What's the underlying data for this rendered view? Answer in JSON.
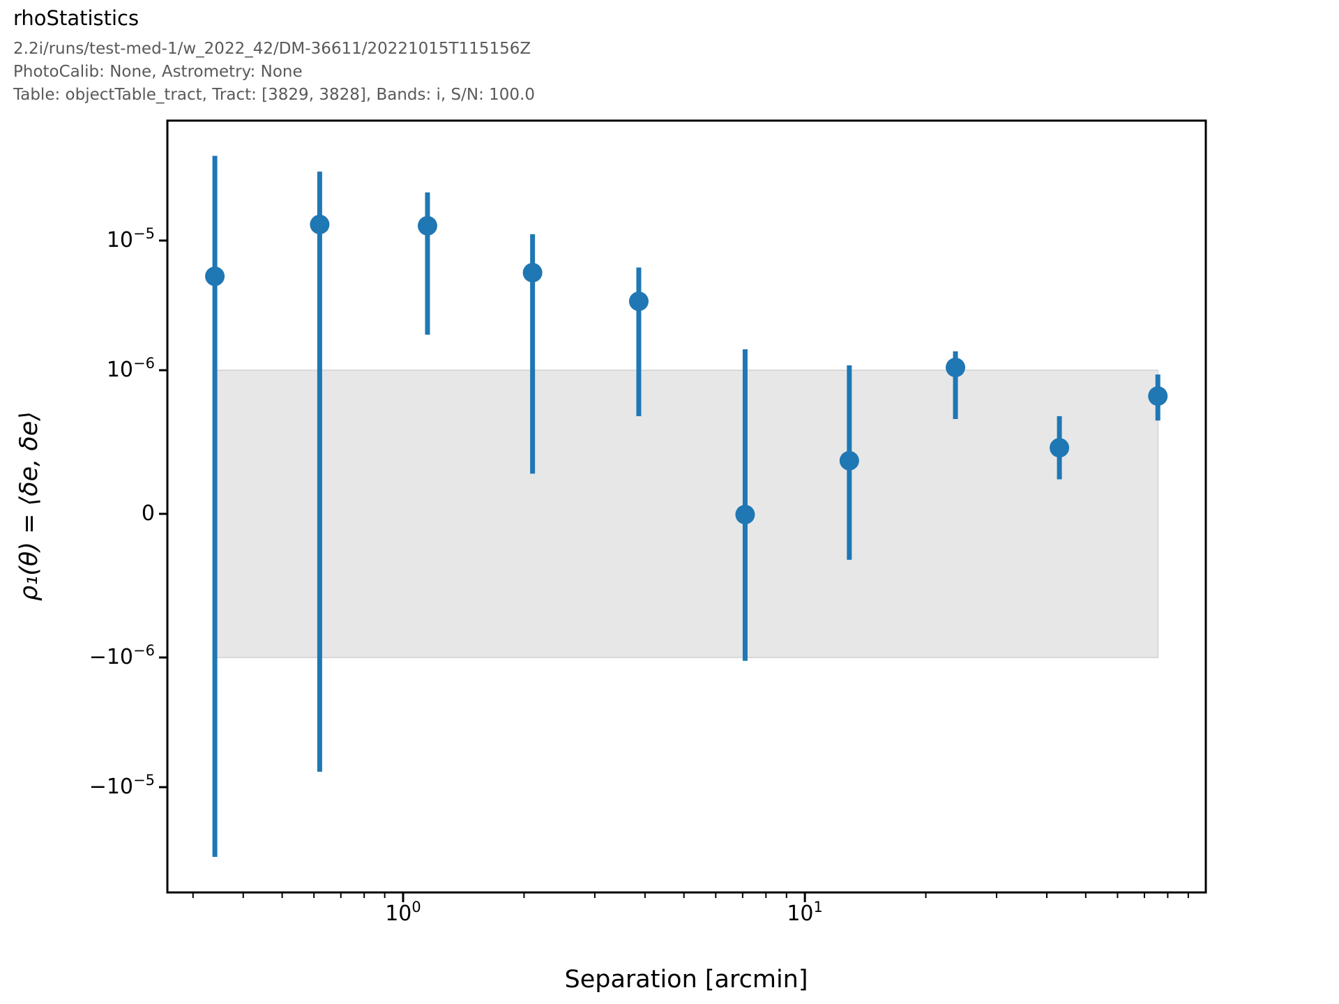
{
  "header": {
    "title": "rhoStatistics",
    "subtitle_lines": [
      "2.2i/runs/test-med-1/w_2022_42/DM-36611/20221015T115156Z",
      "PhotoCalib: None, Astrometry: None",
      "Table: objectTable_tract, Tract: [3829, 3828], Bands: i, S/N: 100.0"
    ]
  },
  "chart_data": {
    "type": "scatter",
    "title": "rhoStatistics",
    "xlabel": "Separation [arcmin]",
    "ylabel": "ρ₁(θ) = ⟨δe, δe⟩",
    "x_scale": "log",
    "y_scale": "symlog",
    "y_linthresh": 1e-06,
    "xlim": [
      0.259,
      99.5
    ],
    "ylim": [
      -6.5e-05,
      8.4e-05
    ],
    "grid": false,
    "legend": "none",
    "x": [
      0.34,
      0.62,
      1.15,
      2.1,
      3.86,
      7.1,
      12.9,
      23.7,
      43.0,
      75.6
    ],
    "y": [
      5.3e-06,
      1.33e-05,
      1.3e-05,
      5.65e-06,
      3.4e-06,
      -5e-09,
      3.7e-07,
      1.05e-06,
      4.6e-07,
      8.2e-07
    ],
    "err_hi": [
      4.5e-05,
      3.4e-05,
      2.35e-05,
      1.12e-05,
      6.2e-06,
      1.45e-06,
      1.09e-06,
      1.4e-06,
      6.8e-07,
      9.7e-07
    ],
    "err_lo": [
      -3.45e-05,
      -7.6e-06,
      1.88e-06,
      2.8e-07,
      6.8e-07,
      -1.06e-06,
      -3.2e-07,
      6.6e-07,
      2.4e-07,
      6.5e-07
    ],
    "band": {
      "y_min": -1e-06,
      "y_max": 1e-06,
      "x_min": 0.34,
      "x_max": 75.6
    },
    "x_ticks": [
      {
        "value": 1,
        "base": "10",
        "exp": "0"
      },
      {
        "value": 10,
        "base": "10",
        "exp": "1"
      }
    ],
    "y_ticks": [
      {
        "value": 1e-05,
        "sign": "",
        "base": "10",
        "exp": "−5"
      },
      {
        "value": 1e-06,
        "sign": "",
        "base": "10",
        "exp": "−6"
      },
      {
        "value": 0,
        "sign": "",
        "base": "0",
        "exp": ""
      },
      {
        "value": -1e-06,
        "sign": "−",
        "base": "10",
        "exp": "−6"
      },
      {
        "value": -1e-05,
        "sign": "−",
        "base": "10",
        "exp": "−5"
      }
    ]
  },
  "colors": {
    "marker": "#1f77b4",
    "band_fill": "#e7e7e7",
    "band_edge": "#d9d9d9",
    "axis": "#000000",
    "title": "#000000",
    "subtitle": "#595959",
    "tick_label": "#000000"
  }
}
